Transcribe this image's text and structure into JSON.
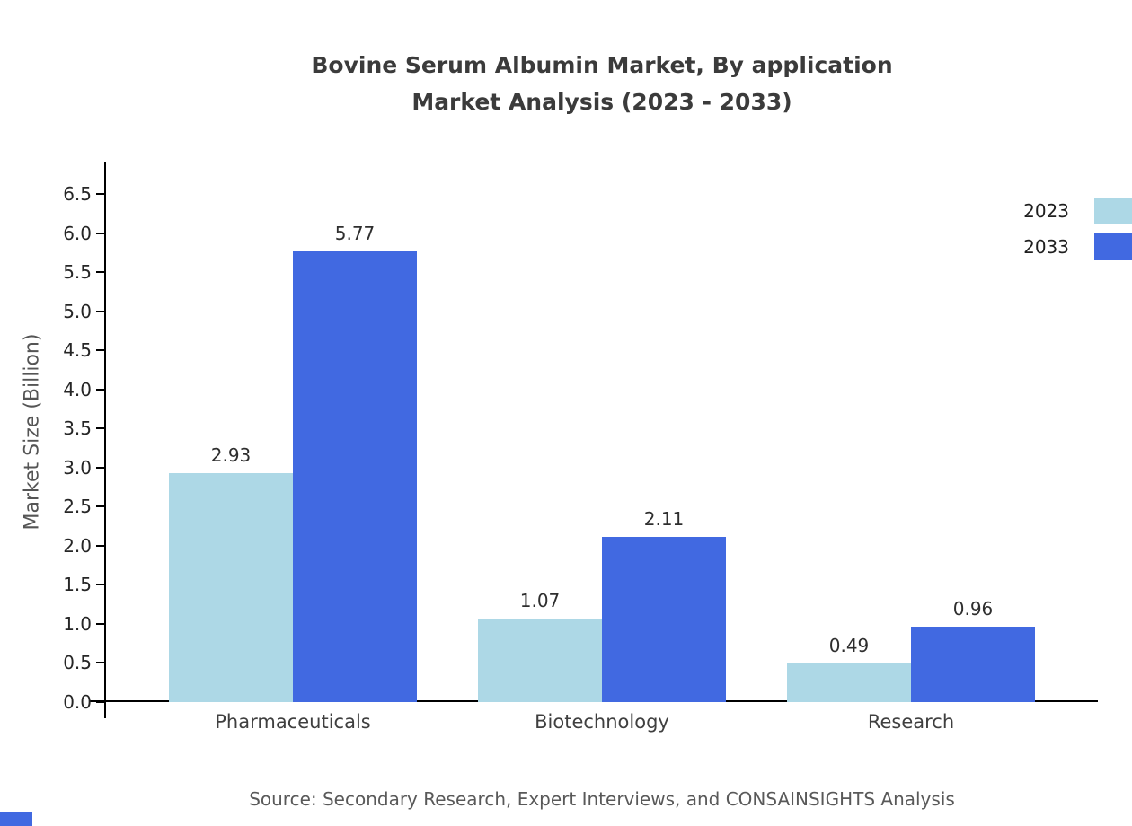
{
  "title": {
    "line1": "Bovine Serum Albumin Market, By application",
    "line2": "Market Analysis (2023 - 2033)"
  },
  "chart_data": {
    "type": "bar",
    "title": "Bovine Serum Albumin Market, By application Market Analysis (2023 - 2033)",
    "categories": [
      "Pharmaceuticals",
      "Biotechnology",
      "Research"
    ],
    "series": [
      {
        "name": "2023",
        "color": "#ADD8E6",
        "values": [
          2.93,
          1.07,
          0.49
        ]
      },
      {
        "name": "2033",
        "color": "#4169E1",
        "values": [
          5.77,
          2.11,
          0.96
        ]
      }
    ],
    "xlabel": "",
    "ylabel": "Market Size (Billion)",
    "ylim": [
      0,
      6.9
    ],
    "yticks": [
      0.0,
      0.5,
      1.0,
      1.5,
      2.0,
      2.5,
      3.0,
      3.5,
      4.0,
      4.5,
      5.0,
      5.5,
      6.0,
      6.5
    ],
    "grid": false,
    "legend_position": "top-right",
    "value_labels": true
  },
  "footer": {
    "source": "Source: Secondary Research, Expert Interviews, and CONSAINSIGHTS Analysis"
  }
}
